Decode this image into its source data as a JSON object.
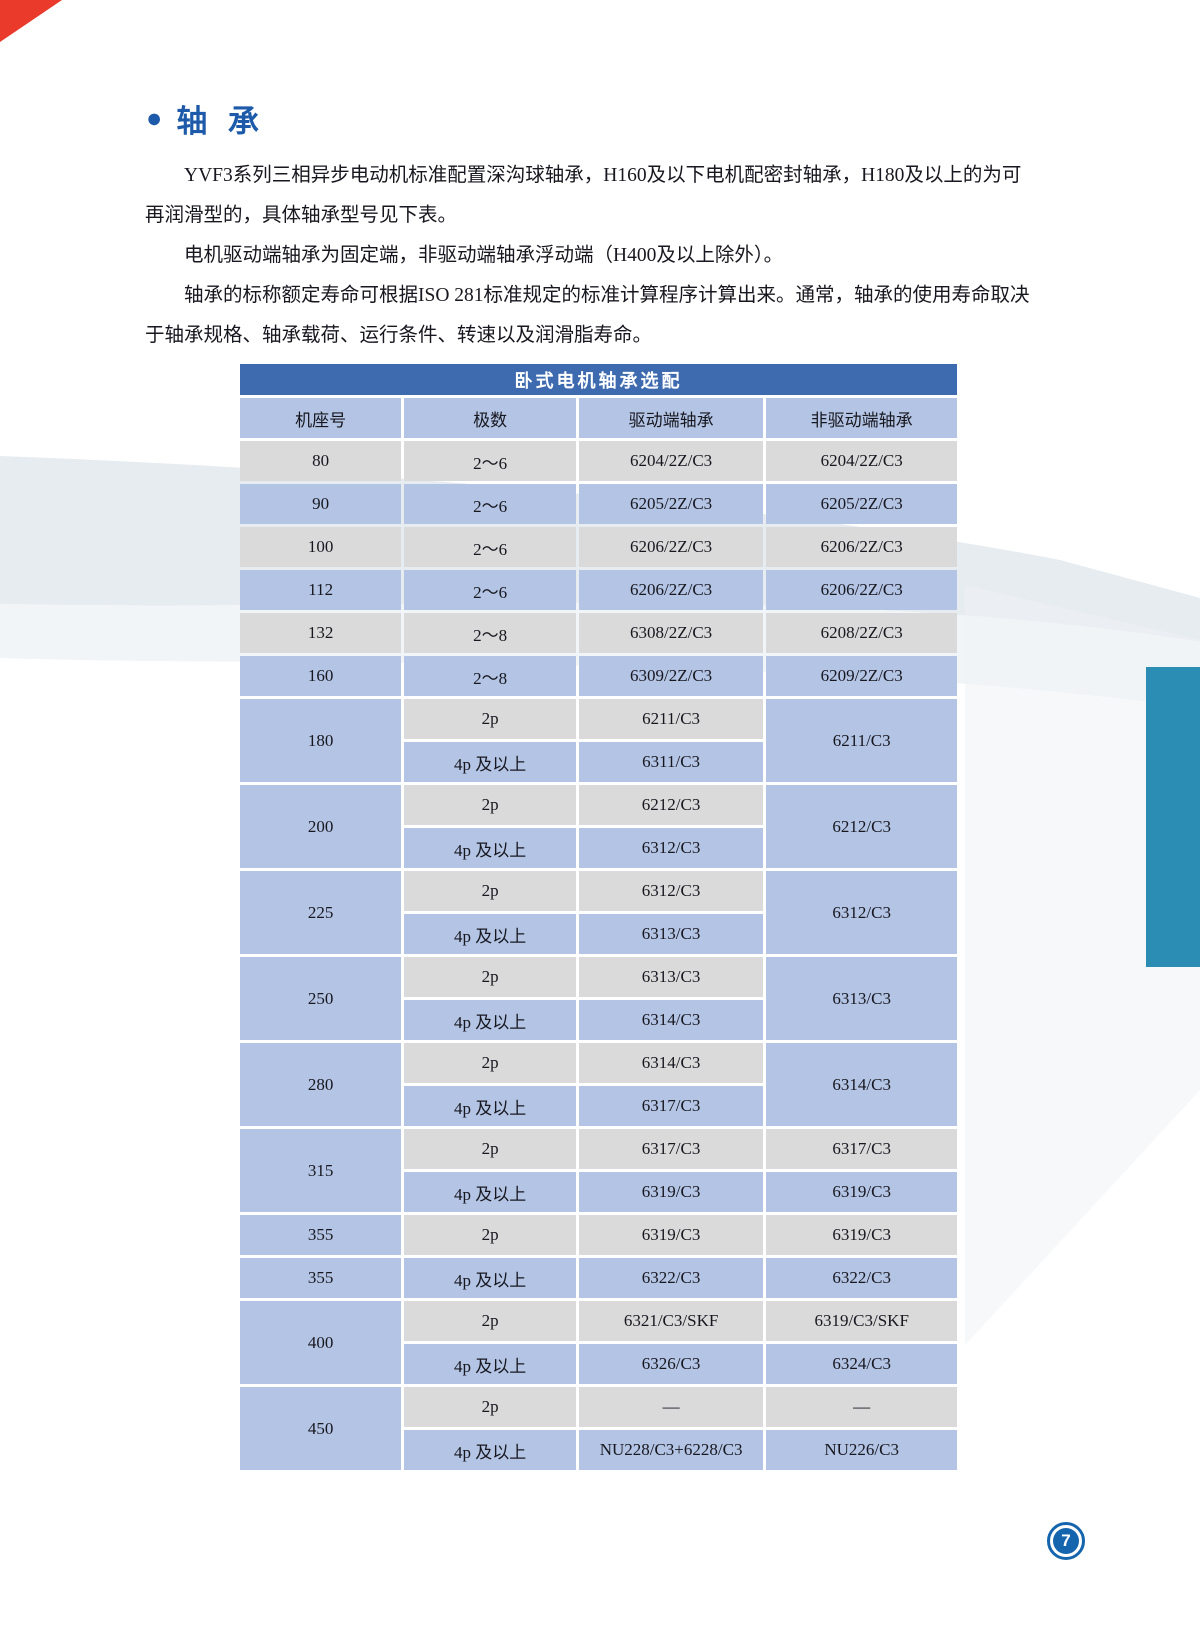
{
  "page": {
    "heading": "轴 承",
    "number": "7"
  },
  "intro": {
    "p1": "YVF3系列三相异步电动机标准配置深沟球轴承，H160及以下电机配密封轴承，H180及以上的为可再润滑型的，具体轴承型号见下表。",
    "p2": "电机驱动端轴承为固定端，非驱动端轴承浮动端（H400及以上除外）。",
    "p3": "轴承的标称额定寿命可根据ISO 281标准规定的标准计算程序计算出来。通常，轴承的使用寿命取决于轴承规格、轴承载荷、运行条件、转速以及润滑脂寿命。"
  },
  "table": {
    "title": "卧式电机轴承选配",
    "headers": [
      "机座号",
      "极数",
      "驱动端轴承",
      "非驱动端轴承"
    ],
    "rows": [
      [
        {
          "t": "80",
          "s": "g"
        },
        {
          "t": "2～6",
          "s": "g"
        },
        {
          "t": "6204/2Z/C3",
          "s": "g"
        },
        {
          "t": "6204/2Z/C3",
          "s": "g"
        }
      ],
      [
        {
          "t": "90",
          "s": "b"
        },
        {
          "t": "2～6",
          "s": "b"
        },
        {
          "t": "6205/2Z/C3",
          "s": "b"
        },
        {
          "t": "6205/2Z/C3",
          "s": "b"
        }
      ],
      [
        {
          "t": "100",
          "s": "g"
        },
        {
          "t": "2～6",
          "s": "g"
        },
        {
          "t": "6206/2Z/C3",
          "s": "g"
        },
        {
          "t": "6206/2Z/C3",
          "s": "g"
        }
      ],
      [
        {
          "t": "112",
          "s": "b"
        },
        {
          "t": "2～6",
          "s": "b"
        },
        {
          "t": "6206/2Z/C3",
          "s": "b"
        },
        {
          "t": "6206/2Z/C3",
          "s": "b"
        }
      ],
      [
        {
          "t": "132",
          "s": "g"
        },
        {
          "t": "2～8",
          "s": "g"
        },
        {
          "t": "6308/2Z/C3",
          "s": "g"
        },
        {
          "t": "6208/2Z/C3",
          "s": "g"
        }
      ],
      [
        {
          "t": "160",
          "s": "b"
        },
        {
          "t": "2～8",
          "s": "b"
        },
        {
          "t": "6309/2Z/C3",
          "s": "b"
        },
        {
          "t": "6209/2Z/C3",
          "s": "b"
        }
      ],
      [
        {
          "t": "180",
          "s": "b",
          "rs": 2
        },
        {
          "t": "2p",
          "s": "g"
        },
        {
          "t": "6211/C3",
          "s": "g"
        },
        {
          "t": "6211/C3",
          "s": "b",
          "rs": 2
        }
      ],
      [
        {
          "t": "4p 及以上",
          "s": "b"
        },
        {
          "t": "6311/C3",
          "s": "b"
        }
      ],
      [
        {
          "t": "200",
          "s": "b",
          "rs": 2
        },
        {
          "t": "2p",
          "s": "g"
        },
        {
          "t": "6212/C3",
          "s": "g"
        },
        {
          "t": "6212/C3",
          "s": "b",
          "rs": 2
        }
      ],
      [
        {
          "t": "4p 及以上",
          "s": "b"
        },
        {
          "t": "6312/C3",
          "s": "b"
        }
      ],
      [
        {
          "t": "225",
          "s": "b",
          "rs": 2
        },
        {
          "t": "2p",
          "s": "g"
        },
        {
          "t": "6312/C3",
          "s": "g"
        },
        {
          "t": "6312/C3",
          "s": "b",
          "rs": 2
        }
      ],
      [
        {
          "t": "4p 及以上",
          "s": "b"
        },
        {
          "t": "6313/C3",
          "s": "b"
        }
      ],
      [
        {
          "t": "250",
          "s": "b",
          "rs": 2
        },
        {
          "t": "2p",
          "s": "g"
        },
        {
          "t": "6313/C3",
          "s": "g"
        },
        {
          "t": "6313/C3",
          "s": "b",
          "rs": 2
        }
      ],
      [
        {
          "t": "4p 及以上",
          "s": "b"
        },
        {
          "t": "6314/C3",
          "s": "b"
        }
      ],
      [
        {
          "t": "280",
          "s": "b",
          "rs": 2
        },
        {
          "t": "2p",
          "s": "g"
        },
        {
          "t": "6314/C3",
          "s": "g"
        },
        {
          "t": "6314/C3",
          "s": "b",
          "rs": 2
        }
      ],
      [
        {
          "t": "4p 及以上",
          "s": "b"
        },
        {
          "t": "6317/C3",
          "s": "b"
        }
      ],
      [
        {
          "t": "315",
          "s": "b",
          "rs": 2
        },
        {
          "t": "2p",
          "s": "g"
        },
        {
          "t": "6317/C3",
          "s": "g"
        },
        {
          "t": "6317/C3",
          "s": "g"
        }
      ],
      [
        {
          "t": "4p 及以上",
          "s": "b"
        },
        {
          "t": "6319/C3",
          "s": "b"
        },
        {
          "t": "6319/C3",
          "s": "b"
        }
      ],
      [
        {
          "t": "355",
          "s": "b"
        },
        {
          "t": "2p",
          "s": "g"
        },
        {
          "t": "6319/C3",
          "s": "g"
        },
        {
          "t": "6319/C3",
          "s": "g"
        }
      ],
      [
        {
          "t": "355",
          "s": "b"
        },
        {
          "t": "4p 及以上",
          "s": "b"
        },
        {
          "t": "6322/C3",
          "s": "b"
        },
        {
          "t": "6322/C3",
          "s": "b"
        }
      ],
      [
        {
          "t": "400",
          "s": "b",
          "rs": 2
        },
        {
          "t": "2p",
          "s": "g"
        },
        {
          "t": "6321/C3/SKF",
          "s": "g"
        },
        {
          "t": "6319/C3/SKF",
          "s": "g"
        }
      ],
      [
        {
          "t": "4p 及以上",
          "s": "b"
        },
        {
          "t": "6326/C3",
          "s": "b"
        },
        {
          "t": "6324/C3",
          "s": "b"
        }
      ],
      [
        {
          "t": "450",
          "s": "b",
          "rs": 2
        },
        {
          "t": "2p",
          "s": "g"
        },
        {
          "t": "—",
          "s": "g"
        },
        {
          "t": "—",
          "s": "g"
        }
      ],
      [
        {
          "t": "4p 及以上",
          "s": "b"
        },
        {
          "t": "NU228/C3+6228/C3",
          "s": "b"
        },
        {
          "t": "NU226/C3",
          "s": "b"
        }
      ]
    ]
  },
  "colors": {
    "accent_blue": "#1d5aa9",
    "table_title_bg": "#3e6bb0",
    "row_blue": "#b3c4e4",
    "row_gray": "#dadada",
    "teal_block": "#2b8cb4",
    "corner_red": "#e93a2c",
    "badge_blue": "#1565ae"
  }
}
